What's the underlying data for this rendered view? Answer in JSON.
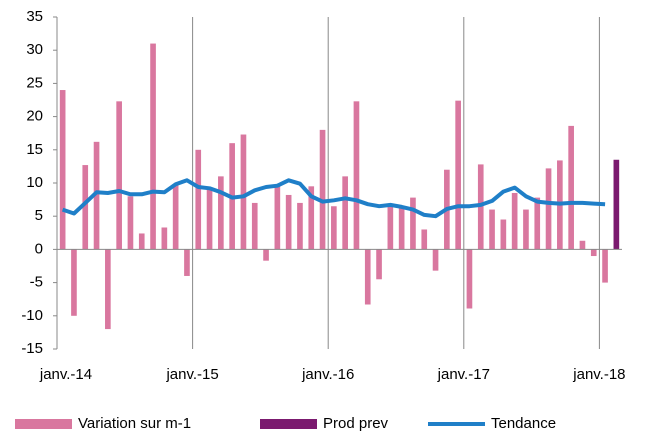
{
  "chart_data": {
    "type": "bar",
    "categories": [
      "janv.-14",
      null,
      null,
      null,
      null,
      null,
      null,
      null,
      null,
      null,
      null,
      null,
      "janv.-15",
      null,
      null,
      null,
      null,
      null,
      null,
      null,
      null,
      null,
      null,
      null,
      "janv.-16",
      null,
      null,
      null,
      null,
      null,
      null,
      null,
      null,
      null,
      null,
      null,
      "janv.-17",
      null,
      null,
      null,
      null,
      null,
      null,
      null,
      null,
      null,
      null,
      null,
      "janv.-18",
      null
    ],
    "series": [
      {
        "name": "Variation sur m-1",
        "color": "#d9779f",
        "type": "bar",
        "values": [
          24,
          -10,
          12.7,
          16.2,
          -12,
          22.3,
          8,
          2.4,
          31,
          3.3,
          9.7,
          -4,
          15,
          9,
          11,
          16,
          17.3,
          7,
          -1.7,
          9.5,
          8.2,
          7,
          9.5,
          18,
          6.5,
          11,
          22.3,
          -8.3,
          -4.5,
          6.5,
          6.5,
          7.8,
          3,
          -3.2,
          12,
          22.4,
          -8.9,
          12.8,
          6,
          4.5,
          8.5,
          6,
          7.8,
          12.2,
          13.4,
          18.6,
          1.3,
          -1,
          -5,
          null
        ]
      },
      {
        "name": "Prod prev",
        "color": "#7b1a6f",
        "type": "bar",
        "values": [
          null,
          null,
          null,
          null,
          null,
          null,
          null,
          null,
          null,
          null,
          null,
          null,
          null,
          null,
          null,
          null,
          null,
          null,
          null,
          null,
          null,
          null,
          null,
          null,
          null,
          null,
          null,
          null,
          null,
          null,
          null,
          null,
          null,
          null,
          null,
          null,
          null,
          null,
          null,
          null,
          null,
          null,
          null,
          null,
          null,
          null,
          null,
          null,
          null,
          13.5
        ]
      },
      {
        "name": "Tendance",
        "color": "#1f7fc8",
        "type": "line",
        "values": [
          6,
          5.4,
          7,
          8.6,
          8.5,
          8.8,
          8.3,
          8.3,
          8.7,
          8.6,
          9.8,
          10.4,
          9.4,
          9.2,
          8.6,
          7.8,
          8,
          8.9,
          9.4,
          9.6,
          10.4,
          9.9,
          8,
          7.2,
          7.4,
          7.7,
          7.4,
          6.8,
          6.5,
          6.7,
          6.4,
          6,
          5.2,
          5,
          6.1,
          6.5,
          6.5,
          6.7,
          7.3,
          8.7,
          9.3,
          8,
          7.2,
          7,
          6.9,
          7,
          7,
          6.9,
          6.8,
          null
        ]
      }
    ],
    "ylim": [
      -15,
      35
    ],
    "yticks": [
      -15,
      -10,
      -5,
      0,
      5,
      10,
      15,
      20,
      25,
      30,
      35
    ],
    "grid": true,
    "legend": "bottom"
  }
}
